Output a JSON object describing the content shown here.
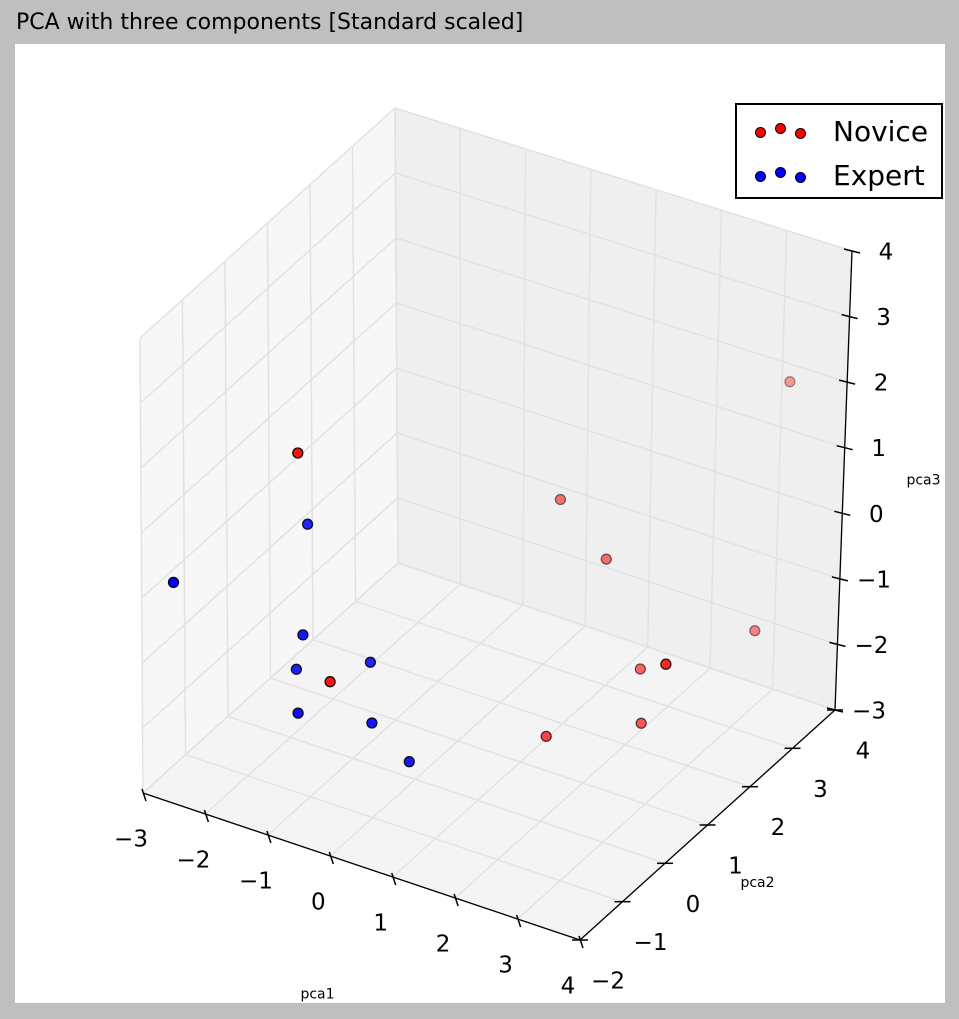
{
  "chart_data": {
    "type": "scatter",
    "title": "PCA with three components [Standard scaled]",
    "xlabel": "pca1",
    "ylabel": "pca2",
    "zlabel": "pca3",
    "xlim": [
      -3,
      4
    ],
    "ylim": [
      -2,
      4
    ],
    "zlim": [
      -3,
      4
    ],
    "x_ticks": [
      "−3",
      "−2",
      "−1",
      "0",
      "1",
      "2",
      "3",
      "4"
    ],
    "y_ticks": [
      "−2",
      "−1",
      "0",
      "1",
      "2",
      "3",
      "4"
    ],
    "z_ticks": [
      "−3",
      "−2",
      "−1",
      "0",
      "1",
      "2",
      "3",
      "4"
    ],
    "grid": true,
    "legend_position": "top-right",
    "series": [
      {
        "name": "Novice",
        "color": "#ff0000",
        "points": [
          [
            -0.9,
            -1.5,
            2.6
          ],
          [
            3.5,
            3.4,
            2.2
          ],
          [
            0.9,
            2.0,
            0.4
          ],
          [
            3.6,
            2.6,
            -1.1
          ],
          [
            -0.5,
            -1.3,
            -0.9
          ],
          [
            1.7,
            1.9,
            -0.2
          ],
          [
            2.6,
            1.4,
            -1.3
          ],
          [
            3.0,
            1.4,
            -1.1
          ],
          [
            3.0,
            1.4,
            -1.1
          ],
          [
            2.9,
            1.0,
            -1.8
          ],
          [
            1.8,
            0.4,
            -2.0
          ]
        ]
      },
      {
        "name": "Expert",
        "color": "#0000ff",
        "points": [
          [
            -1.2,
            -0.8,
            1.0
          ],
          [
            -2.5,
            -2.0,
            0.4
          ],
          [
            -1.0,
            -1.2,
            -0.4
          ],
          [
            -1.3,
            -0.9,
            -1.2
          ],
          [
            -0.8,
            -1.6,
            -1.3
          ],
          [
            -0.2,
            -0.8,
            -0.8
          ],
          [
            0.1,
            -1.2,
            -1.4
          ],
          [
            0.7,
            -1.2,
            -1.8
          ]
        ]
      }
    ]
  }
}
